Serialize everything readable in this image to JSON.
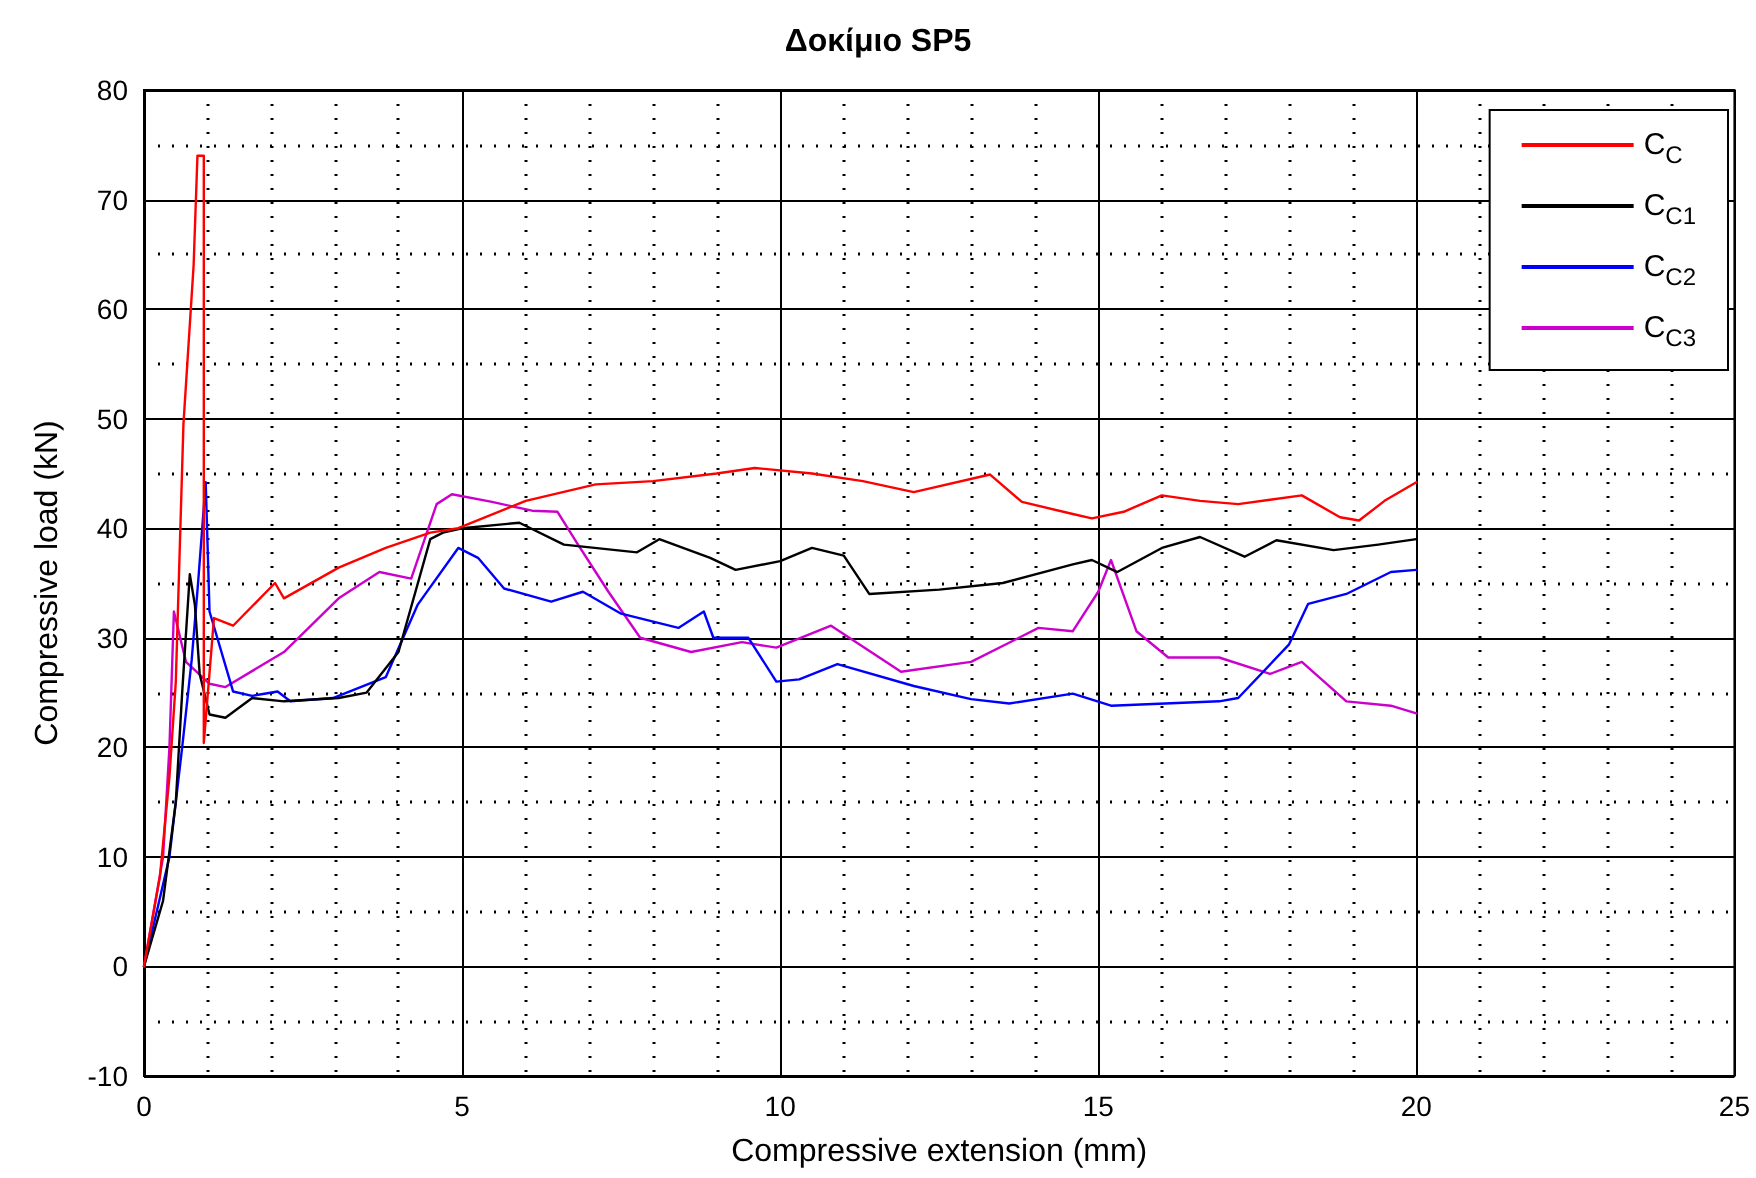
{
  "chart_data": {
    "type": "line",
    "title": "Δοκίμιο SP5",
    "xlabel": "Compressive extension (mm)",
    "ylabel": "Compressive load (kN)",
    "xlim": [
      0,
      25
    ],
    "xticks": [
      0,
      5,
      10,
      15,
      20,
      25
    ],
    "ylim": [
      -10,
      80
    ],
    "yticks": [
      -10,
      0,
      10,
      20,
      30,
      40,
      50,
      60,
      70,
      80
    ],
    "grid": true,
    "legend": "top right",
    "line_style": "solid",
    "marker": "none",
    "series": [
      {
        "name": "C$_{C}$",
        "color": "#ff0000",
        "x": [
          0,
          0.25,
          0.4,
          0.5,
          0.62,
          0.78,
          0.84,
          0.94,
          0.94,
          1.1,
          1.4,
          2.06,
          2.2,
          3.06,
          3.8,
          4.5,
          4.94,
          6,
          7.1,
          8,
          9,
          9.6,
          10.5,
          11.3,
          12.1,
          13.3,
          13.8,
          14.6,
          14.9,
          15.4,
          16,
          16.6,
          17.2,
          17.7,
          18.2,
          18.8,
          19.1,
          19.5,
          20
        ],
        "values": [
          0,
          8.2,
          17.3,
          26,
          49.5,
          64,
          74,
          74,
          20.4,
          31.8,
          31.1,
          35,
          33.6,
          36.4,
          38.2,
          39.6,
          40,
          42.5,
          44,
          44.3,
          45,
          45.5,
          45,
          44.3,
          43.3,
          44.9,
          42.4,
          41.3,
          40.9,
          41.5,
          43,
          42.5,
          42.2,
          42.6,
          43,
          41,
          40.7,
          42.5,
          44.2
        ]
      },
      {
        "name": "C$_{C1}$",
        "color": "#000000",
        "x": [
          0,
          0.3,
          0.5,
          0.6,
          0.72,
          0.8,
          0.875,
          1.03,
          1.28,
          1.7,
          2.2,
          3.06,
          3.5,
          4,
          4.5,
          4.7,
          5,
          5.9,
          6.6,
          7.75,
          8.1,
          8.9,
          9.3,
          10,
          10.5,
          11,
          11.4,
          12.5,
          13.5,
          14.6,
          14.9,
          15.3,
          16,
          16.6,
          17.3,
          17.8,
          18.7,
          19.4,
          20
        ],
        "values": [
          0,
          6,
          15,
          25,
          35.8,
          33,
          26.7,
          23,
          22.7,
          24.5,
          24.2,
          24.5,
          25,
          28.7,
          39,
          39.6,
          40,
          40.5,
          38.5,
          37.8,
          39,
          37.3,
          36.2,
          37,
          38.2,
          37.5,
          34,
          34.4,
          35,
          36.7,
          37.1,
          36,
          38.2,
          39.2,
          37.4,
          38.9,
          38,
          38.5,
          39
        ]
      },
      {
        "name": "C$_{C2}$",
        "color": "#0000ff",
        "x": [
          0,
          0.4,
          0.6,
          0.75,
          0.85,
          0.97,
          1.03,
          1.4,
          1.7,
          2.1,
          2.3,
          2.97,
          3.8,
          4.3,
          4.94,
          5.25,
          5.66,
          6.4,
          6.9,
          7.5,
          8.4,
          8.8,
          8.95,
          9.5,
          9.94,
          10.3,
          10.9,
          12.1,
          13,
          13.6,
          14.6,
          15.2,
          16.9,
          17.2,
          18,
          18.3,
          18.9,
          19.6,
          20
        ],
        "values": [
          0,
          10,
          20,
          28,
          35,
          44.2,
          32.4,
          25.1,
          24.7,
          25.1,
          24.2,
          24.5,
          26.4,
          33,
          38.2,
          37.3,
          34.5,
          33.3,
          34.2,
          32.2,
          30.9,
          32.4,
          30,
          30,
          26,
          26.2,
          27.6,
          25.6,
          24.4,
          24,
          24.9,
          23.8,
          24.2,
          24.5,
          29.4,
          33.1,
          34,
          36,
          36.2
        ]
      },
      {
        "name": "C$_{C3}$",
        "color": "#cc00cc",
        "x": [
          0,
          0.3,
          0.4,
          0.47,
          0.66,
          1.03,
          1.28,
          2.2,
          3.06,
          3.7,
          4.2,
          4.6,
          4.84,
          5.47,
          6.1,
          6.5,
          6.8,
          7.3,
          7.8,
          8.6,
          9.4,
          9.94,
          10.8,
          11.9,
          13,
          14.06,
          14.6,
          15,
          15.2,
          15.6,
          16.1,
          16.9,
          17.7,
          18.2,
          18.9,
          19.6,
          20
        ],
        "values": [
          0,
          10,
          20,
          32.4,
          27.8,
          25.8,
          25.5,
          28.7,
          33.6,
          36,
          35.4,
          42.2,
          43.1,
          42.4,
          41.6,
          41.5,
          38.7,
          34.2,
          30,
          28.7,
          29.6,
          29.1,
          31.1,
          26.9,
          27.8,
          30.9,
          30.6,
          34.2,
          37.1,
          30.6,
          28.2,
          28.2,
          26.7,
          27.8,
          24.2,
          23.8,
          23.1
        ]
      }
    ]
  }
}
